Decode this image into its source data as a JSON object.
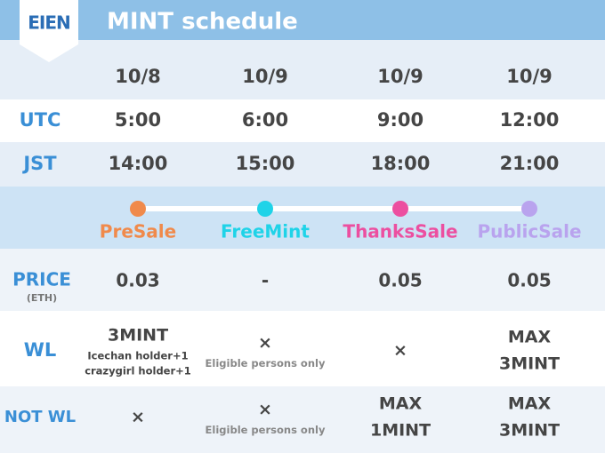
{
  "header": {
    "logo": "EIEN",
    "title": "MINT schedule"
  },
  "dates": [
    "10/8",
    "10/9",
    "10/9",
    "10/9"
  ],
  "times": [
    {
      "label": "UTC",
      "values": [
        "5:00",
        "6:00",
        "9:00",
        "12:00"
      ]
    },
    {
      "label": "JST",
      "values": [
        "14:00",
        "15:00",
        "18:00",
        "21:00"
      ]
    }
  ],
  "phases": [
    {
      "name": "PreSale",
      "color": "#f08a4b"
    },
    {
      "name": "FreeMint",
      "color": "#1fd3e8"
    },
    {
      "name": "ThanksSale",
      "color": "#ec4fa0"
    },
    {
      "name": "PublicSale",
      "color": "#b9a3ee"
    }
  ],
  "price": {
    "label": "PRICE",
    "unit": "(ETH)",
    "values": [
      "0.03",
      "-",
      "0.05",
      "0.05"
    ]
  },
  "limits": [
    {
      "label": "WL",
      "cells": [
        {
          "lines": [
            "3MINT"
          ],
          "notes": [
            "Icechan holder+1",
            "crazygirl holder+1"
          ]
        },
        {
          "lines": [
            "×"
          ],
          "notes": [
            "Eligible persons only"
          ]
        },
        {
          "lines": [
            "×"
          ],
          "notes": []
        },
        {
          "lines": [
            "MAX",
            "3MINT"
          ],
          "notes": []
        }
      ]
    },
    {
      "label": "NOT WL",
      "cells": [
        {
          "lines": [
            "×"
          ],
          "notes": []
        },
        {
          "lines": [
            "×"
          ],
          "notes": [
            "Eligible persons only"
          ]
        },
        {
          "lines": [
            "MAX",
            "1MINT"
          ],
          "notes": []
        },
        {
          "lines": [
            "MAX",
            "3MINT"
          ],
          "notes": []
        }
      ]
    }
  ]
}
